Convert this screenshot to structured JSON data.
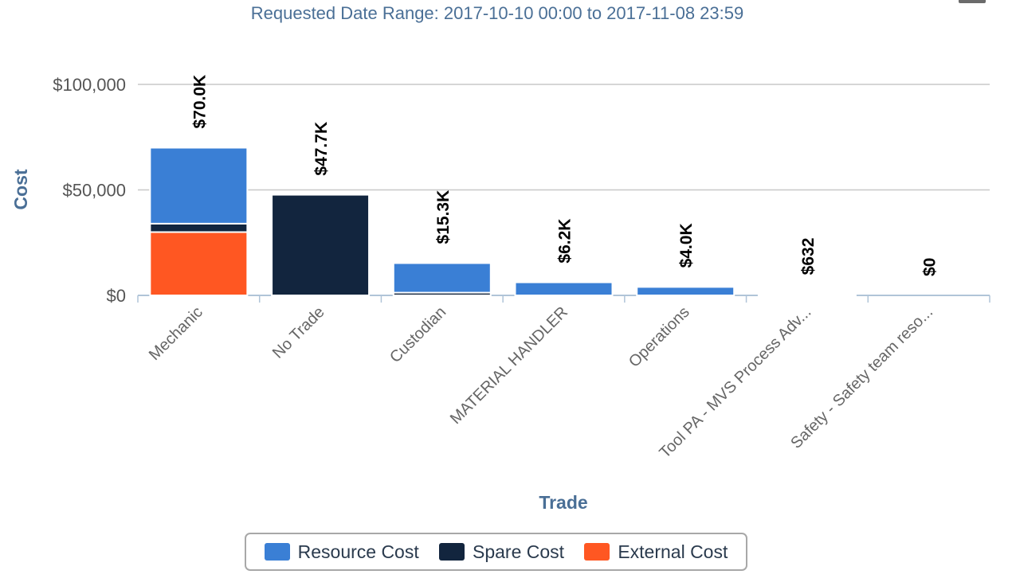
{
  "chart_data": {
    "type": "bar",
    "stacked": true,
    "subtitle": "Requested Date Range: 2017-10-10 00:00 to 2017-11-08 23:59",
    "xlabel": "Trade",
    "ylabel": "Cost",
    "ylim": [
      0,
      110000
    ],
    "yticks": [
      0,
      50000,
      100000
    ],
    "ytick_labels": [
      "$0",
      "$50,000",
      "$100,000"
    ],
    "grid": true,
    "legend_position": "bottom",
    "categories": [
      "Mechanic",
      "No Trade",
      "Custodian",
      "MATERIAL HANDLER",
      "Operations",
      "Tool PA - MVS Process Adv...",
      "Safety - Safety team reso..."
    ],
    "series": [
      {
        "name": "Resource Cost",
        "color": "#3a7fd5",
        "values": [
          36000,
          0,
          14000,
          6200,
          4000,
          632,
          0
        ]
      },
      {
        "name": "Spare Cost",
        "color": "#12253e",
        "values": [
          4000,
          47700,
          1300,
          0,
          0,
          0,
          0
        ]
      },
      {
        "name": "External Cost",
        "color": "#ff5722",
        "values": [
          30000,
          0,
          0,
          0,
          0,
          0,
          0
        ]
      }
    ],
    "total_labels": [
      "$70.0K",
      "$47.7K",
      "$15.3K",
      "$6.2K",
      "$4.0K",
      "$632",
      "$0"
    ]
  }
}
